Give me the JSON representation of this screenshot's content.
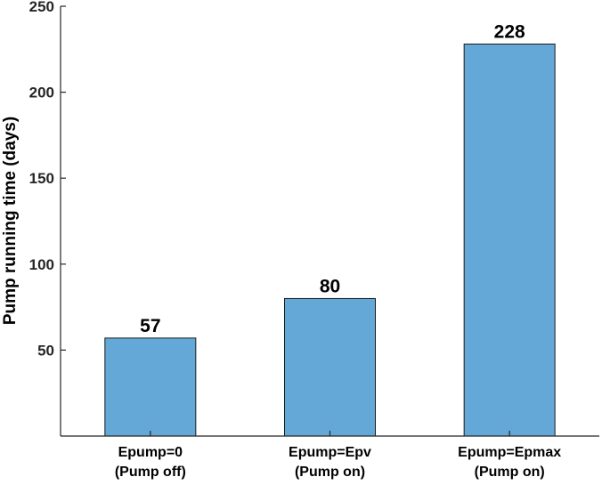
{
  "chart_data": {
    "type": "bar",
    "title": "",
    "xlabel": "",
    "ylabel": "Pump running time (days)",
    "categories": [
      [
        "Epump=0",
        "(Pump off)"
      ],
      [
        "Epump=Epv",
        "(Pump on)"
      ],
      [
        "Epump=Epmax",
        "(Pump on)"
      ]
    ],
    "values": [
      57,
      80,
      228
    ],
    "data_labels": [
      "57",
      "80",
      "228"
    ],
    "ylim": [
      0,
      250
    ],
    "yticks": [
      50,
      100,
      150,
      200,
      250
    ],
    "grid": false,
    "bar_color": "#64a8d7",
    "bar_edge_color": "#1a1a1a",
    "axis_color": "#262626"
  }
}
